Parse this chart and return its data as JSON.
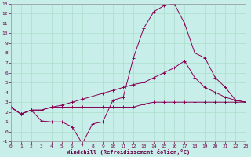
{
  "background_color": "#c8eeea",
  "grid_color": "#aaddcc",
  "line_color": "#880055",
  "xlim": [
    0,
    23
  ],
  "ylim": [
    -1,
    13
  ],
  "xticks": [
    0,
    1,
    2,
    3,
    4,
    5,
    6,
    7,
    8,
    9,
    10,
    11,
    12,
    13,
    14,
    15,
    16,
    17,
    18,
    19,
    20,
    21,
    22,
    23
  ],
  "yticks": [
    -1,
    0,
    1,
    2,
    3,
    4,
    5,
    6,
    7,
    8,
    9,
    10,
    11,
    12,
    13
  ],
  "xlabel": "Windchill (Refroidissement éolien,°C)",
  "line1_x": [
    0,
    1,
    2,
    3,
    4,
    5,
    6,
    7,
    8,
    9,
    10,
    11,
    12,
    13,
    14,
    15,
    16,
    17,
    18,
    19,
    20,
    21,
    22,
    23
  ],
  "line1_y": [
    2.5,
    1.8,
    2.2,
    2.2,
    2.5,
    2.5,
    2.5,
    2.5,
    2.5,
    2.5,
    2.5,
    2.5,
    2.5,
    2.8,
    3.0,
    3.0,
    3.0,
    3.0,
    3.0,
    3.0,
    3.0,
    3.0,
    3.0,
    3.0
  ],
  "line2_x": [
    0,
    1,
    2,
    3,
    4,
    5,
    6,
    7,
    8,
    9,
    10,
    11,
    12,
    13,
    14,
    15,
    16,
    17,
    18,
    19,
    20,
    21,
    22,
    23
  ],
  "line2_y": [
    2.5,
    1.8,
    2.2,
    2.2,
    2.5,
    2.7,
    3.0,
    3.3,
    3.6,
    3.9,
    4.2,
    4.5,
    4.8,
    5.0,
    5.5,
    6.0,
    6.5,
    7.2,
    5.5,
    4.5,
    4.0,
    3.5,
    3.2,
    3.0
  ],
  "line3_x": [
    0,
    1,
    2,
    3,
    4,
    5,
    6,
    7,
    8,
    9,
    10,
    11,
    12,
    13,
    14,
    15,
    16,
    17,
    18,
    19,
    20,
    21,
    22,
    23
  ],
  "line3_y": [
    2.5,
    1.8,
    2.2,
    1.1,
    1.0,
    1.0,
    0.5,
    -1.2,
    0.8,
    1.0,
    3.2,
    3.5,
    7.5,
    10.5,
    12.2,
    12.8,
    13.0,
    11.0,
    8.0,
    7.5,
    5.5,
    4.5,
    3.2,
    3.0
  ]
}
